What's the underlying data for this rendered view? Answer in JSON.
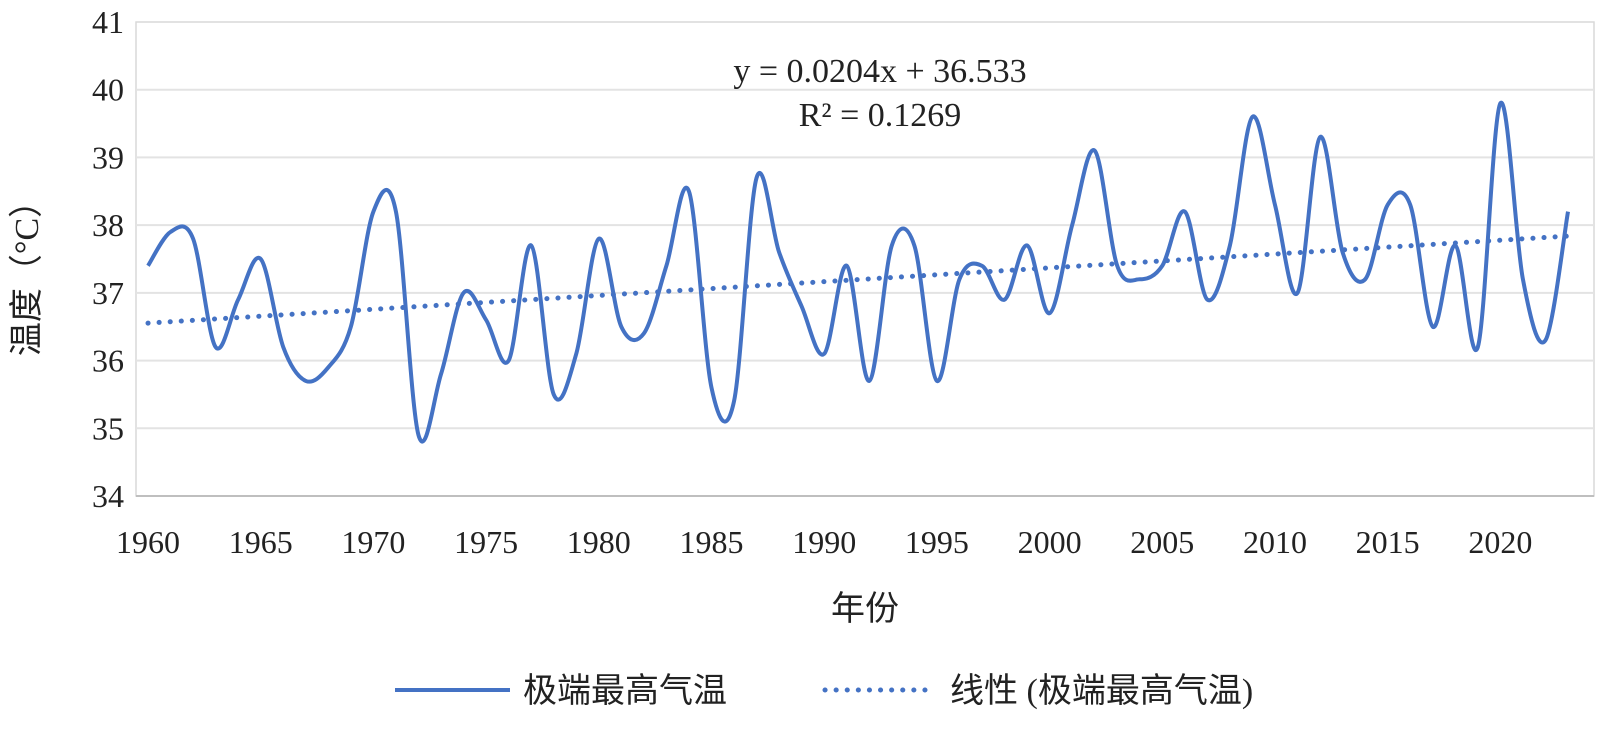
{
  "chart_data": {
    "type": "line",
    "title": "",
    "xlabel": "年份",
    "ylabel": "温度（°C）",
    "xlim": [
      1960,
      2023
    ],
    "ylim": [
      34,
      41
    ],
    "x_ticks": [
      1960,
      1965,
      1970,
      1975,
      1980,
      1985,
      1990,
      1995,
      2000,
      2005,
      2010,
      2015,
      2020
    ],
    "y_ticks": [
      34,
      35,
      36,
      37,
      38,
      39,
      40,
      41
    ],
    "grid": "horizontal",
    "legend_position": "bottom",
    "series": [
      {
        "name": "极端最高气温",
        "style": "solid-smooth",
        "color": "#4472C4",
        "x": [
          1960,
          1961,
          1962,
          1963,
          1964,
          1965,
          1966,
          1967,
          1968,
          1969,
          1970,
          1971,
          1972,
          1973,
          1974,
          1975,
          1976,
          1977,
          1978,
          1979,
          1980,
          1981,
          1982,
          1983,
          1984,
          1985,
          1986,
          1987,
          1988,
          1989,
          1990,
          1991,
          1992,
          1993,
          1994,
          1995,
          1996,
          1997,
          1998,
          1999,
          2000,
          2001,
          2002,
          2003,
          2004,
          2005,
          2006,
          2007,
          2008,
          2009,
          2010,
          2011,
          2012,
          2013,
          2014,
          2015,
          2016,
          2017,
          2018,
          2019,
          2020,
          2021,
          2022,
          2023
        ],
        "values": [
          37.4,
          37.9,
          37.8,
          36.2,
          36.9,
          37.5,
          36.2,
          35.7,
          35.9,
          36.5,
          38.2,
          38.2,
          34.9,
          35.8,
          37.0,
          36.6,
          36.0,
          37.7,
          35.5,
          36.1,
          37.8,
          36.5,
          36.4,
          37.4,
          38.5,
          35.6,
          35.4,
          38.7,
          37.6,
          36.8,
          36.1,
          37.4,
          35.7,
          37.7,
          37.7,
          35.7,
          37.2,
          37.4,
          36.9,
          37.7,
          36.7,
          38.0,
          39.1,
          37.4,
          37.2,
          37.4,
          38.2,
          36.9,
          37.7,
          39.6,
          38.3,
          37.0,
          39.3,
          37.6,
          37.2,
          38.3,
          38.3,
          36.5,
          37.7,
          36.2,
          39.8,
          37.2,
          36.3,
          38.2
        ]
      },
      {
        "name": "线性 (极端最高气温)",
        "style": "dotted-trendline",
        "color": "#4472C4",
        "slope": 0.0204,
        "intercept": 36.533
      }
    ],
    "annotations": {
      "equation": "y = 0.0204x + 36.533",
      "r_squared": "R² = 0.1269"
    }
  },
  "legend": {
    "series_label": "极端最高气温",
    "trend_label": "线性 (极端最高气温)"
  }
}
